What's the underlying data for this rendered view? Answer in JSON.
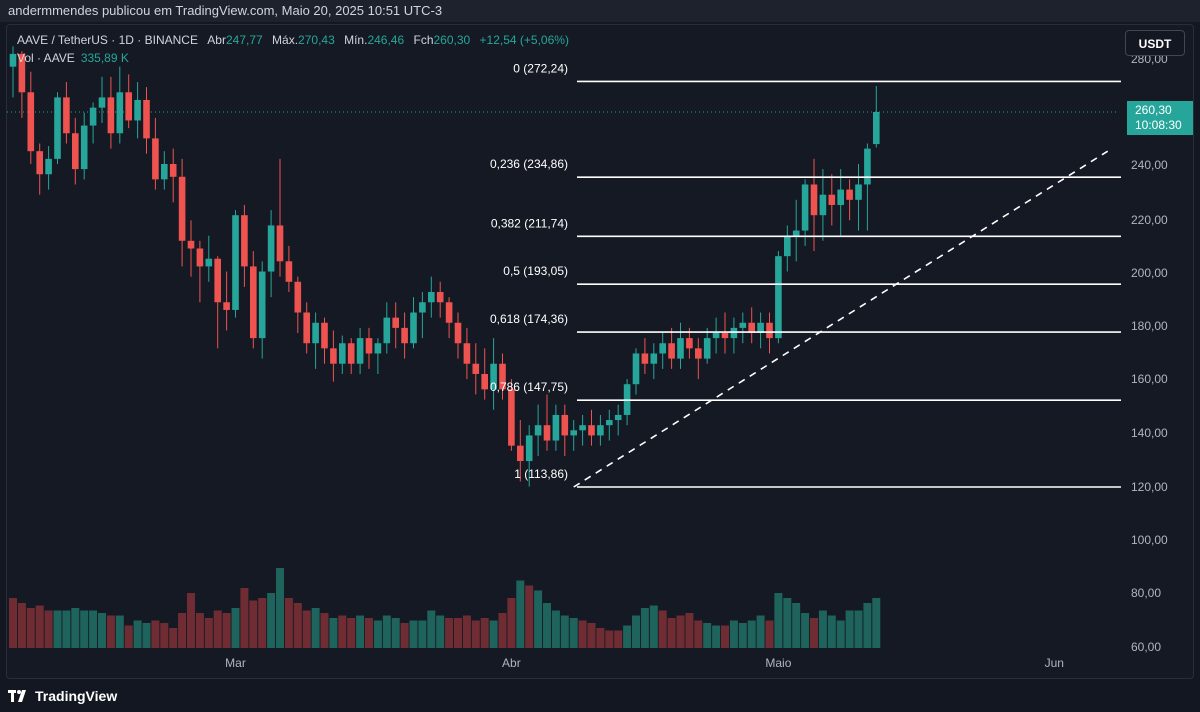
{
  "header": {
    "publish_text": "andermmendes publicou em TradingView.com, Maio 20, 2025 10:51 UTC-3"
  },
  "legend": {
    "symbol": "AAVE / TetherUS · 1D · BINANCE",
    "open_label": "Abr",
    "open_value": "247,77",
    "high_label": "Máx.",
    "high_value": "270,43",
    "low_label": "Mín.",
    "low_value": "246,46",
    "close_label": "Fch",
    "close_value": "260,30",
    "change": "+12,54 (+5,06%)",
    "volume_label": "Vol · AAVE",
    "volume_value": "335,89 K"
  },
  "currency_button": "USDT",
  "price_tag": {
    "price": "260,30",
    "countdown": "10:08:30"
  },
  "footer": {
    "brand": "TradingView"
  },
  "colors": {
    "up": "#26a69a",
    "down": "#ef5350",
    "background": "#131722",
    "fib_line": "#ffffff"
  },
  "chart_data": {
    "type": "candlestick",
    "title": "AAVE / TetherUS · 1D · BINANCE",
    "y_axis": {
      "ticks": [
        "60,00",
        "80,00",
        "100,00",
        "120,00",
        "140,00",
        "160,00",
        "180,00",
        "200,00",
        "220,00",
        "240,00",
        "260,00",
        "280,00"
      ],
      "ylim": [
        60,
        285
      ]
    },
    "x_axis": {
      "ticks": [
        {
          "label": "Mar",
          "index": 25
        },
        {
          "label": "Abr",
          "index": 56
        },
        {
          "label": "Maio",
          "index": 86
        },
        {
          "label": "Jun",
          "index": 117
        }
      ]
    },
    "fibonacci": [
      {
        "ratio": "0",
        "price": 272.24,
        "label": "0 (272,24)"
      },
      {
        "ratio": "0.236",
        "price": 234.86,
        "label": "0,236 (234,86)"
      },
      {
        "ratio": "0.382",
        "price": 211.74,
        "label": "0,382 (211,74)"
      },
      {
        "ratio": "0.5",
        "price": 193.05,
        "label": "0,5 (193,05)"
      },
      {
        "ratio": "0.618",
        "price": 174.36,
        "label": "0,618 (174,36)"
      },
      {
        "ratio": "0.786",
        "price": 147.75,
        "label": "0,786 (147,75)"
      },
      {
        "ratio": "1",
        "price": 113.86,
        "label": "1 (113,86)"
      }
    ],
    "trendline": {
      "start": {
        "index": 63,
        "price": 113.86
      },
      "end": {
        "index": 123,
        "price": 245
      }
    },
    "candles": [
      [
        278,
        286,
        266,
        283
      ],
      [
        283,
        284,
        258,
        268
      ],
      [
        268,
        276,
        240,
        245
      ],
      [
        245,
        248,
        228,
        236
      ],
      [
        236,
        247,
        230,
        242
      ],
      [
        242,
        268,
        240,
        266
      ],
      [
        266,
        272,
        248,
        252
      ],
      [
        252,
        258,
        232,
        238
      ],
      [
        238,
        260,
        234,
        255
      ],
      [
        255,
        264,
        248,
        262
      ],
      [
        262,
        274,
        256,
        266
      ],
      [
        266,
        274,
        246,
        252
      ],
      [
        252,
        278,
        248,
        268
      ],
      [
        268,
        275,
        254,
        257
      ],
      [
        257,
        272,
        250,
        265
      ],
      [
        265,
        270,
        244,
        250
      ],
      [
        250,
        258,
        230,
        234
      ],
      [
        234,
        245,
        230,
        240
      ],
      [
        240,
        246,
        225,
        235
      ],
      [
        235,
        242,
        200,
        210
      ],
      [
        210,
        218,
        196,
        207
      ],
      [
        207,
        210,
        186,
        200
      ],
      [
        200,
        212,
        194,
        203
      ],
      [
        203,
        204,
        168,
        186
      ],
      [
        186,
        198,
        175,
        183
      ],
      [
        183,
        222,
        180,
        220
      ],
      [
        220,
        224,
        192,
        200
      ],
      [
        200,
        206,
        168,
        172
      ],
      [
        172,
        202,
        164,
        198
      ],
      [
        198,
        222,
        188,
        216
      ],
      [
        216,
        242,
        196,
        202
      ],
      [
        202,
        208,
        190,
        194
      ],
      [
        194,
        196,
        174,
        182
      ],
      [
        182,
        186,
        166,
        170
      ],
      [
        170,
        182,
        160,
        178
      ],
      [
        178,
        180,
        162,
        168
      ],
      [
        168,
        175,
        155,
        162
      ],
      [
        162,
        173,
        158,
        170
      ],
      [
        170,
        172,
        158,
        162
      ],
      [
        162,
        176,
        158,
        172
      ],
      [
        172,
        176,
        160,
        166
      ],
      [
        166,
        172,
        158,
        170
      ],
      [
        170,
        186,
        166,
        180
      ],
      [
        180,
        186,
        168,
        176
      ],
      [
        176,
        182,
        164,
        170
      ],
      [
        170,
        188,
        168,
        182
      ],
      [
        182,
        190,
        172,
        186
      ],
      [
        186,
        196,
        180,
        190
      ],
      [
        190,
        194,
        180,
        186
      ],
      [
        186,
        188,
        172,
        178
      ],
      [
        178,
        182,
        164,
        170
      ],
      [
        170,
        176,
        156,
        162
      ],
      [
        162,
        170,
        150,
        158
      ],
      [
        158,
        168,
        148,
        152
      ],
      [
        152,
        172,
        144,
        162
      ],
      [
        162,
        166,
        148,
        152
      ],
      [
        152,
        156,
        128,
        130
      ],
      [
        130,
        140,
        116,
        124
      ],
      [
        124,
        138,
        114,
        134
      ],
      [
        134,
        146,
        126,
        138
      ],
      [
        138,
        150,
        128,
        132
      ],
      [
        132,
        146,
        128,
        142
      ],
      [
        142,
        146,
        126,
        134
      ],
      [
        134,
        140,
        128,
        136
      ],
      [
        136,
        142,
        130,
        138
      ],
      [
        138,
        144,
        130,
        134
      ],
      [
        134,
        142,
        130,
        138
      ],
      [
        138,
        144,
        132,
        140
      ],
      [
        140,
        146,
        134,
        142
      ],
      [
        142,
        156,
        138,
        154
      ],
      [
        154,
        168,
        150,
        166
      ],
      [
        166,
        172,
        158,
        162
      ],
      [
        162,
        170,
        156,
        166
      ],
      [
        166,
        174,
        160,
        170
      ],
      [
        170,
        176,
        160,
        164
      ],
      [
        164,
        178,
        160,
        172
      ],
      [
        172,
        176,
        164,
        168
      ],
      [
        168,
        172,
        156,
        164
      ],
      [
        164,
        176,
        162,
        172
      ],
      [
        172,
        180,
        166,
        174
      ],
      [
        174,
        182,
        166,
        172
      ],
      [
        172,
        180,
        166,
        176
      ],
      [
        176,
        182,
        170,
        178
      ],
      [
        178,
        184,
        170,
        174
      ],
      [
        174,
        182,
        168,
        178
      ],
      [
        178,
        182,
        166,
        172
      ],
      [
        172,
        206,
        170,
        204
      ],
      [
        204,
        216,
        198,
        212
      ],
      [
        212,
        226,
        202,
        214
      ],
      [
        214,
        234,
        208,
        232
      ],
      [
        232,
        242,
        206,
        220
      ],
      [
        220,
        238,
        210,
        228
      ],
      [
        228,
        236,
        216,
        224
      ],
      [
        224,
        238,
        212,
        230
      ],
      [
        230,
        234,
        218,
        226
      ],
      [
        226,
        240,
        214,
        232
      ],
      [
        232,
        248,
        214,
        246
      ],
      [
        247.77,
        270.43,
        246.46,
        260.3
      ]
    ],
    "volume": [
      [
        40,
        "down"
      ],
      [
        36,
        "down"
      ],
      [
        32,
        "down"
      ],
      [
        34,
        "down"
      ],
      [
        30,
        "down"
      ],
      [
        30,
        "up"
      ],
      [
        30,
        "up"
      ],
      [
        32,
        "up"
      ],
      [
        30,
        "up"
      ],
      [
        30,
        "up"
      ],
      [
        28,
        "up"
      ],
      [
        26,
        "down"
      ],
      [
        26,
        "up"
      ],
      [
        18,
        "down"
      ],
      [
        22,
        "up"
      ],
      [
        20,
        "up"
      ],
      [
        22,
        "down"
      ],
      [
        20,
        "down"
      ],
      [
        16,
        "down"
      ],
      [
        28,
        "down"
      ],
      [
        44,
        "down"
      ],
      [
        28,
        "down"
      ],
      [
        24,
        "down"
      ],
      [
        30,
        "down"
      ],
      [
        28,
        "down"
      ],
      [
        32,
        "up"
      ],
      [
        48,
        "down"
      ],
      [
        38,
        "down"
      ],
      [
        40,
        "down"
      ],
      [
        44,
        "up"
      ],
      [
        64,
        "up"
      ],
      [
        40,
        "down"
      ],
      [
        36,
        "down"
      ],
      [
        30,
        "down"
      ],
      [
        32,
        "up"
      ],
      [
        28,
        "down"
      ],
      [
        24,
        "up"
      ],
      [
        26,
        "down"
      ],
      [
        24,
        "down"
      ],
      [
        26,
        "up"
      ],
      [
        24,
        "down"
      ],
      [
        22,
        "up"
      ],
      [
        26,
        "up"
      ],
      [
        24,
        "up"
      ],
      [
        20,
        "down"
      ],
      [
        22,
        "up"
      ],
      [
        22,
        "up"
      ],
      [
        30,
        "up"
      ],
      [
        26,
        "up"
      ],
      [
        24,
        "down"
      ],
      [
        24,
        "down"
      ],
      [
        26,
        "down"
      ],
      [
        22,
        "down"
      ],
      [
        24,
        "down"
      ],
      [
        22,
        "up"
      ],
      [
        28,
        "down"
      ],
      [
        40,
        "down"
      ],
      [
        54,
        "up"
      ],
      [
        50,
        "down"
      ],
      [
        46,
        "up"
      ],
      [
        36,
        "up"
      ],
      [
        30,
        "up"
      ],
      [
        26,
        "up"
      ],
      [
        24,
        "up"
      ],
      [
        22,
        "down"
      ],
      [
        20,
        "down"
      ],
      [
        16,
        "down"
      ],
      [
        14,
        "down"
      ],
      [
        14,
        "down"
      ],
      [
        18,
        "up"
      ],
      [
        26,
        "up"
      ],
      [
        32,
        "up"
      ],
      [
        34,
        "up"
      ],
      [
        30,
        "down"
      ],
      [
        24,
        "down"
      ],
      [
        26,
        "down"
      ],
      [
        28,
        "down"
      ],
      [
        22,
        "down"
      ],
      [
        20,
        "up"
      ],
      [
        18,
        "up"
      ],
      [
        18,
        "down"
      ],
      [
        22,
        "up"
      ],
      [
        20,
        "up"
      ],
      [
        22,
        "up"
      ],
      [
        26,
        "up"
      ],
      [
        22,
        "down"
      ],
      [
        44,
        "up"
      ],
      [
        40,
        "up"
      ],
      [
        36,
        "up"
      ],
      [
        28,
        "up"
      ],
      [
        24,
        "down"
      ],
      [
        30,
        "up"
      ],
      [
        26,
        "up"
      ],
      [
        22,
        "up"
      ],
      [
        30,
        "up"
      ],
      [
        30,
        "up"
      ],
      [
        36,
        "up"
      ],
      [
        40,
        "up"
      ]
    ]
  }
}
